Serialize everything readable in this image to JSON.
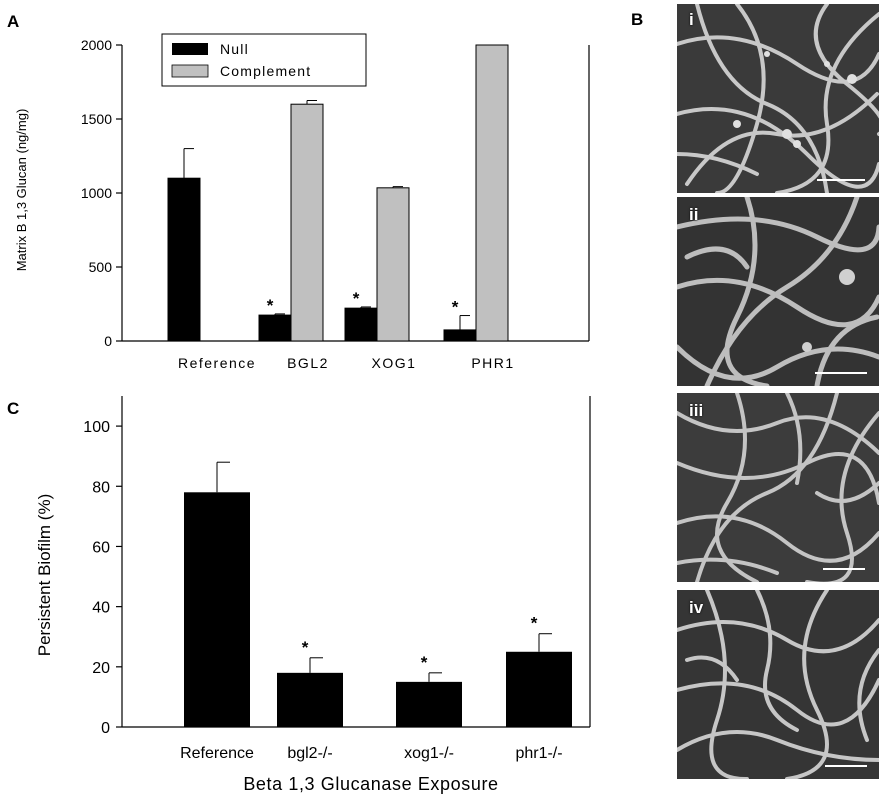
{
  "panels": {
    "a": "A",
    "b": "B",
    "c": "C"
  },
  "chart_data": [
    {
      "type": "bar",
      "panel": "A",
      "ylabel": "Matrix B 1,3 Glucan (ng/mg)",
      "xlabel": "",
      "ylim": [
        0,
        2000
      ],
      "yticks": [
        0,
        500,
        1000,
        1500,
        2000
      ],
      "categories": [
        "Reference",
        "BGL2",
        "XOG1",
        "PHR1"
      ],
      "series": [
        {
          "name": "Null",
          "color": "#000000",
          "values": [
            1100,
            175,
            222,
            75
          ],
          "errors": [
            200,
            8,
            8,
            97
          ],
          "significant": [
            false,
            true,
            true,
            true
          ]
        },
        {
          "name": "Complement",
          "color": "#c0c0c0",
          "values": [
            null,
            1600,
            1035,
            2000
          ],
          "errors": [
            null,
            25,
            8,
            0
          ],
          "significant": [
            false,
            false,
            false,
            false
          ]
        }
      ],
      "significance_marker": "*",
      "legend": "top-left"
    },
    {
      "type": "bar",
      "panel": "C",
      "ylabel": "Persistent Biofilm (%)",
      "xlabel": "Beta 1,3 Glucanase Exposure",
      "ylim": [
        0,
        110
      ],
      "yticks": [
        0,
        20,
        40,
        60,
        80,
        100
      ],
      "categories": [
        "Reference",
        "bgl2-/-",
        "xog1-/-",
        "phr1-/-"
      ],
      "series": [
        {
          "color": "#000000",
          "values": [
            78,
            18,
            15,
            25
          ],
          "errors": [
            10,
            5,
            3,
            6
          ],
          "significant": [
            false,
            true,
            true,
            true
          ]
        }
      ],
      "significance_marker": "*"
    }
  ],
  "micrographs": {
    "labels": [
      "i",
      "ii",
      "iii",
      "iv"
    ]
  }
}
